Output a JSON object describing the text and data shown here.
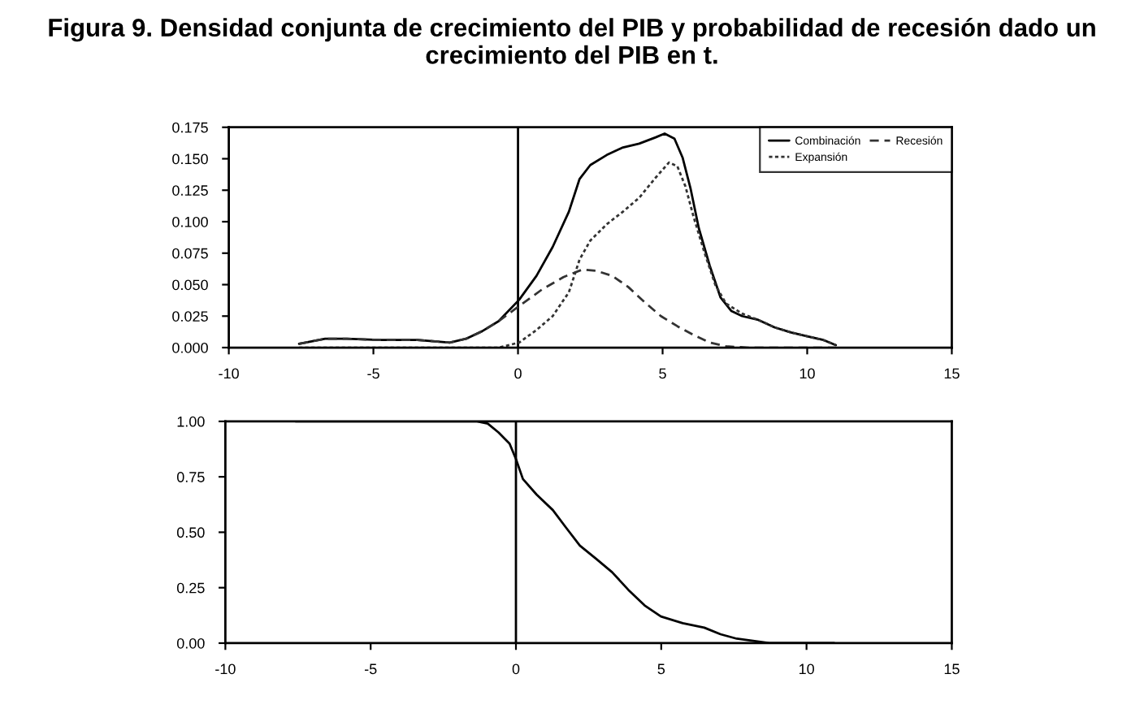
{
  "chart_data": [
    {
      "type": "line",
      "title": "Figura 9. Densidad conjunta de crecimiento del PIB y probabilidad de recesión dado un crecimiento del PIB en t.",
      "series": [
        {
          "name": "Combinación",
          "color": "#000000",
          "line_style": "solid",
          "x": [
            -7.57,
            -6.67,
            -5.92,
            -4.79,
            -3.48,
            -2.36,
            -1.8,
            -1.24,
            -0.67,
            0.04,
            0.64,
            1.2,
            1.76,
            2.13,
            2.5,
            3.07,
            3.63,
            4.19,
            4.76,
            5.07,
            5.41,
            5.69,
            5.97,
            6.25,
            6.63,
            7.0,
            7.38,
            7.75,
            8.31,
            8.88,
            9.44,
            10.0,
            10.56,
            10.99
          ],
          "values": [
            0.003,
            0.007,
            0.007,
            0.006,
            0.006,
            0.004,
            0.007,
            0.013,
            0.021,
            0.038,
            0.057,
            0.08,
            0.108,
            0.134,
            0.145,
            0.153,
            0.159,
            0.162,
            0.167,
            0.17,
            0.166,
            0.151,
            0.126,
            0.095,
            0.065,
            0.04,
            0.029,
            0.025,
            0.022,
            0.016,
            0.012,
            0.009,
            0.006,
            0.002
          ]
        },
        {
          "name": "Expansión",
          "color": "#333333",
          "line_style": "dotted",
          "x": [
            -7.57,
            -3.0,
            -1.5,
            -0.67,
            0.04,
            0.64,
            1.2,
            1.76,
            2.13,
            2.5,
            3.07,
            3.63,
            4.19,
            4.76,
            5.22,
            5.51,
            5.79,
            6.07,
            6.44,
            6.82,
            7.19,
            7.75,
            8.31,
            8.88,
            9.44,
            10.0,
            10.56,
            10.99
          ],
          "values": [
            0,
            0,
            0,
            0,
            0.004,
            0.014,
            0.025,
            0.044,
            0.07,
            0.085,
            0.098,
            0.108,
            0.119,
            0.135,
            0.147,
            0.144,
            0.128,
            0.104,
            0.076,
            0.05,
            0.035,
            0.027,
            0.022,
            0.016,
            0.012,
            0.009,
            0.006,
            0.002
          ]
        },
        {
          "name": "Recesión",
          "color": "#333333",
          "line_style": "dashed",
          "x": [
            -7.57,
            -6.67,
            -5.92,
            -4.79,
            -3.48,
            -2.36,
            -1.8,
            -1.24,
            -0.67,
            0.04,
            0.82,
            1.57,
            2.23,
            2.7,
            3.26,
            3.82,
            4.38,
            4.94,
            5.51,
            6.07,
            6.63,
            7.19,
            7.94,
            9.0,
            10.99
          ],
          "values": [
            0.003,
            0.007,
            0.007,
            0.006,
            0.006,
            0.004,
            0.007,
            0.013,
            0.021,
            0.033,
            0.046,
            0.056,
            0.062,
            0.061,
            0.057,
            0.048,
            0.036,
            0.025,
            0.017,
            0.01,
            0.004,
            0.001,
            0,
            0,
            0
          ]
        }
      ],
      "xlim": [
        -10,
        15
      ],
      "xticks": [
        -10,
        -5,
        0,
        5,
        10,
        15
      ],
      "ylim": [
        0,
        0.175
      ],
      "yticks": [
        {
          "value": 0,
          "label": "0.000"
        },
        {
          "value": 0.025,
          "label": "0.025"
        },
        {
          "value": 0.05,
          "label": "0.050"
        },
        {
          "value": 0.075,
          "label": "0.075"
        },
        {
          "value": 0.1,
          "label": "0.100"
        },
        {
          "value": 0.125,
          "label": "0.125"
        },
        {
          "value": 0.15,
          "label": "0.150"
        },
        {
          "value": 0.175,
          "label": "0.175"
        }
      ],
      "ref_lines": [
        {
          "axis": "x",
          "value": 0,
          "color": "#000000"
        }
      ],
      "grid": false,
      "legend": "top right"
    },
    {
      "type": "line",
      "series": [
        {
          "color": "#000000",
          "line_style": "solid",
          "x": [
            -7.58,
            -1.34,
            -0.97,
            -0.6,
            -0.22,
            0.0,
            0.24,
            0.71,
            1.27,
            1.73,
            2.2,
            2.76,
            3.31,
            3.87,
            4.43,
            4.99,
            5.74,
            6.48,
            7.04,
            7.6,
            8.16,
            8.72,
            10.95
          ],
          "values": [
            1.0,
            1.0,
            0.99,
            0.95,
            0.9,
            0.83,
            0.74,
            0.67,
            0.6,
            0.52,
            0.44,
            0.38,
            0.32,
            0.24,
            0.17,
            0.12,
            0.09,
            0.07,
            0.04,
            0.02,
            0.01,
            0,
            0
          ]
        }
      ],
      "xlim": [
        -10,
        15
      ],
      "xticks": [
        -10,
        -5,
        0,
        5,
        10,
        15
      ],
      "ylim": [
        0,
        1
      ],
      "yticks": [
        {
          "value": 0,
          "label": "0.00"
        },
        {
          "value": 0.25,
          "label": "0.25"
        },
        {
          "value": 0.5,
          "label": "0.50"
        },
        {
          "value": 0.75,
          "label": "0.75"
        },
        {
          "value": 1,
          "label": "1.00"
        }
      ],
      "ref_lines": [
        {
          "axis": "x",
          "value": 0,
          "color": "#000000"
        }
      ],
      "grid": false
    }
  ]
}
